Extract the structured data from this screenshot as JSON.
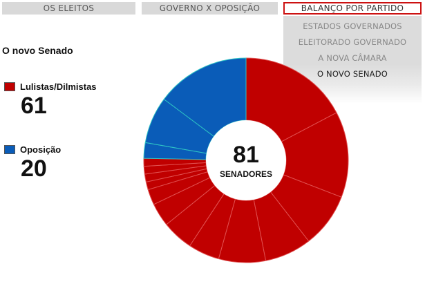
{
  "tabs": [
    {
      "label": "OS ELEITOS"
    },
    {
      "label": "GOVERNO X OPOSIÇÃO"
    },
    {
      "label": "BALANÇO POR PARTIDO"
    }
  ],
  "submenu": [
    {
      "label": "ESTADOS GOVERNADOS"
    },
    {
      "label": "ELEITORADO GOVERNADO"
    },
    {
      "label": "A NOVA CÂMARA"
    },
    {
      "label": "O NOVO SENADO"
    }
  ],
  "page_title": "O novo Senado",
  "colors": {
    "government": "#c00000",
    "opposition": "#0a5cb8",
    "government_stroke": "#e05050",
    "opposition_stroke": "#2ec4c4",
    "active_tab_border": "#cc1111"
  },
  "chart_data": {
    "type": "pie",
    "variant": "donut",
    "center_value": "81",
    "center_label": "SENADORES",
    "legend": [
      {
        "label": "Lulistas/Dilmistas",
        "value": "61"
      },
      {
        "label": "Oposição",
        "value": "20"
      }
    ],
    "segments": [
      {
        "group": "government",
        "value": 14
      },
      {
        "group": "government",
        "value": 11
      },
      {
        "group": "government",
        "value": 7
      },
      {
        "group": "government",
        "value": 6
      },
      {
        "group": "government",
        "value": 6
      },
      {
        "group": "government",
        "value": 4
      },
      {
        "group": "government",
        "value": 4
      },
      {
        "group": "government",
        "value": 3
      },
      {
        "group": "government",
        "value": 2
      },
      {
        "group": "government",
        "value": 1
      },
      {
        "group": "government",
        "value": 1
      },
      {
        "group": "government",
        "value": 1
      },
      {
        "group": "government",
        "value": 1
      },
      {
        "group": "opposition",
        "value": 2
      },
      {
        "group": "opposition",
        "value": 6
      },
      {
        "group": "opposition",
        "value": 12
      }
    ]
  }
}
